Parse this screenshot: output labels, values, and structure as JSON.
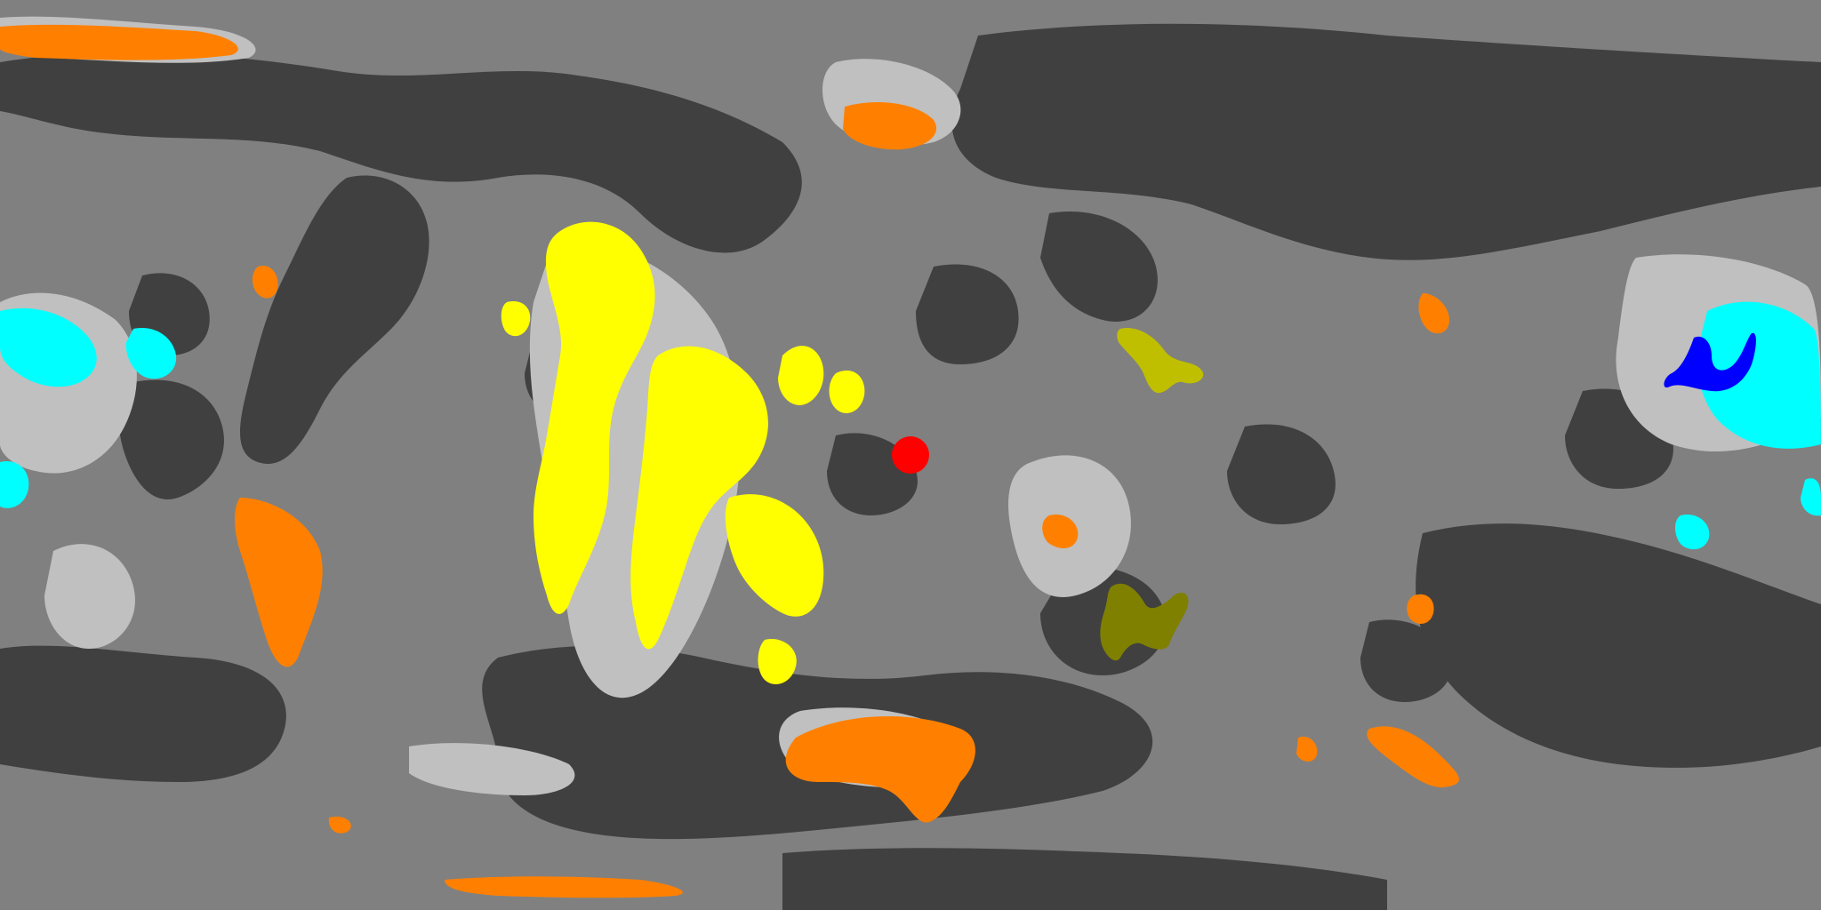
{
  "map": {
    "projection": "equirectangular",
    "palette": {
      "background": "#808080",
      "lowland": "#404040",
      "highland": "#c0c0c0",
      "orange_region": "#ff8000",
      "yellow_region": "#ffff00",
      "cyan_region": "#00ffff",
      "blue_region": "#0000ff",
      "olive_light_region": "#bfbf00",
      "olive_dark_region": "#808000",
      "marker": "#ff0000"
    },
    "layers": [
      {
        "name": "lowland-terrain",
        "color_key": "lowland"
      },
      {
        "name": "highland-terrain",
        "color_key": "highland"
      },
      {
        "name": "orange-regions",
        "color_key": "orange_region"
      },
      {
        "name": "yellow-regions",
        "color_key": "yellow_region"
      },
      {
        "name": "cyan-regions",
        "color_key": "cyan_region"
      },
      {
        "name": "blue-regions",
        "color_key": "blue_region"
      },
      {
        "name": "olive-light-region",
        "color_key": "olive_light_region"
      },
      {
        "name": "olive-dark-region",
        "color_key": "olive_dark_region"
      }
    ],
    "marker": {
      "name": "location-marker",
      "color_key": "marker"
    }
  }
}
